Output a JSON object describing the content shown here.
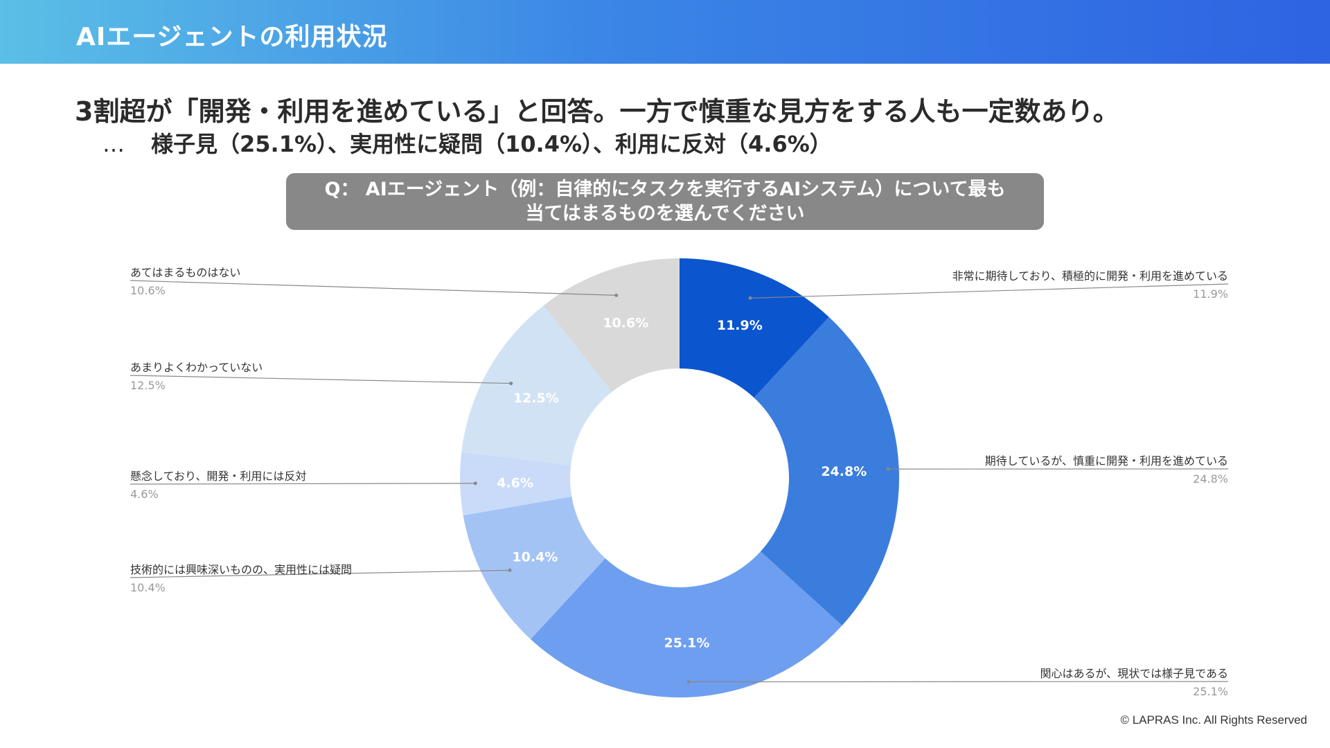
{
  "header": {
    "title": "AIエージェントの利用状況"
  },
  "headline": "3割超が「開発・利用を進めている」と回答。一方で慎重な見方をする人も一定数あり。",
  "subline": {
    "ellipsis": "…",
    "text": "様子見（25.1%）、実用性に疑問（10.4%）、利用に反対（4.6%）"
  },
  "question": {
    "line1": "Q： AIエージェント（例：自律的にタスクを実行するAIシステム）について最も",
    "line2": "当てはまるものを選んでください"
  },
  "copyright": "© LAPRAS Inc. All Rights Reserved",
  "chart_data": {
    "type": "pie",
    "donut": true,
    "start_angle_deg": 0,
    "direction": "clockwise",
    "series": [
      {
        "name": "非常に期待しており、積極的に開発・利用を進めている",
        "value": 11.9,
        "label": "11.9%",
        "color": "#0b55cf",
        "label_color": "#ffffff",
        "legend_side": "right"
      },
      {
        "name": "期待しているが、慎重に開発・利用を進めている",
        "value": 24.8,
        "label": "24.8%",
        "color": "#3b7ddd",
        "label_color": "#ffffff",
        "legend_side": "right"
      },
      {
        "name": "関心はあるが、現状では様子見である",
        "value": 25.1,
        "label": "25.1%",
        "color": "#6e9ef0",
        "label_color": "#ffffff",
        "legend_side": "right"
      },
      {
        "name": "技術的には興味深いものの、実用性には疑問",
        "value": 10.4,
        "label": "10.4%",
        "color": "#a4c3f5",
        "label_color": "#ffffff",
        "legend_side": "left"
      },
      {
        "name": "懸念しており、開発・利用には反対",
        "value": 4.6,
        "label": "4.6%",
        "color": "#c9dbf8",
        "label_color": "#ffffff",
        "legend_side": "left"
      },
      {
        "name": "あまりよくわかっていない",
        "value": 12.5,
        "label": "12.5%",
        "color": "#d1e2f4",
        "label_color": "#ffffff",
        "legend_side": "left"
      },
      {
        "name": "あてはまるものはない",
        "value": 10.6,
        "label": "10.6%",
        "color": "#d9d9d9",
        "label_color": "#ffffff",
        "legend_side": "left"
      }
    ]
  }
}
